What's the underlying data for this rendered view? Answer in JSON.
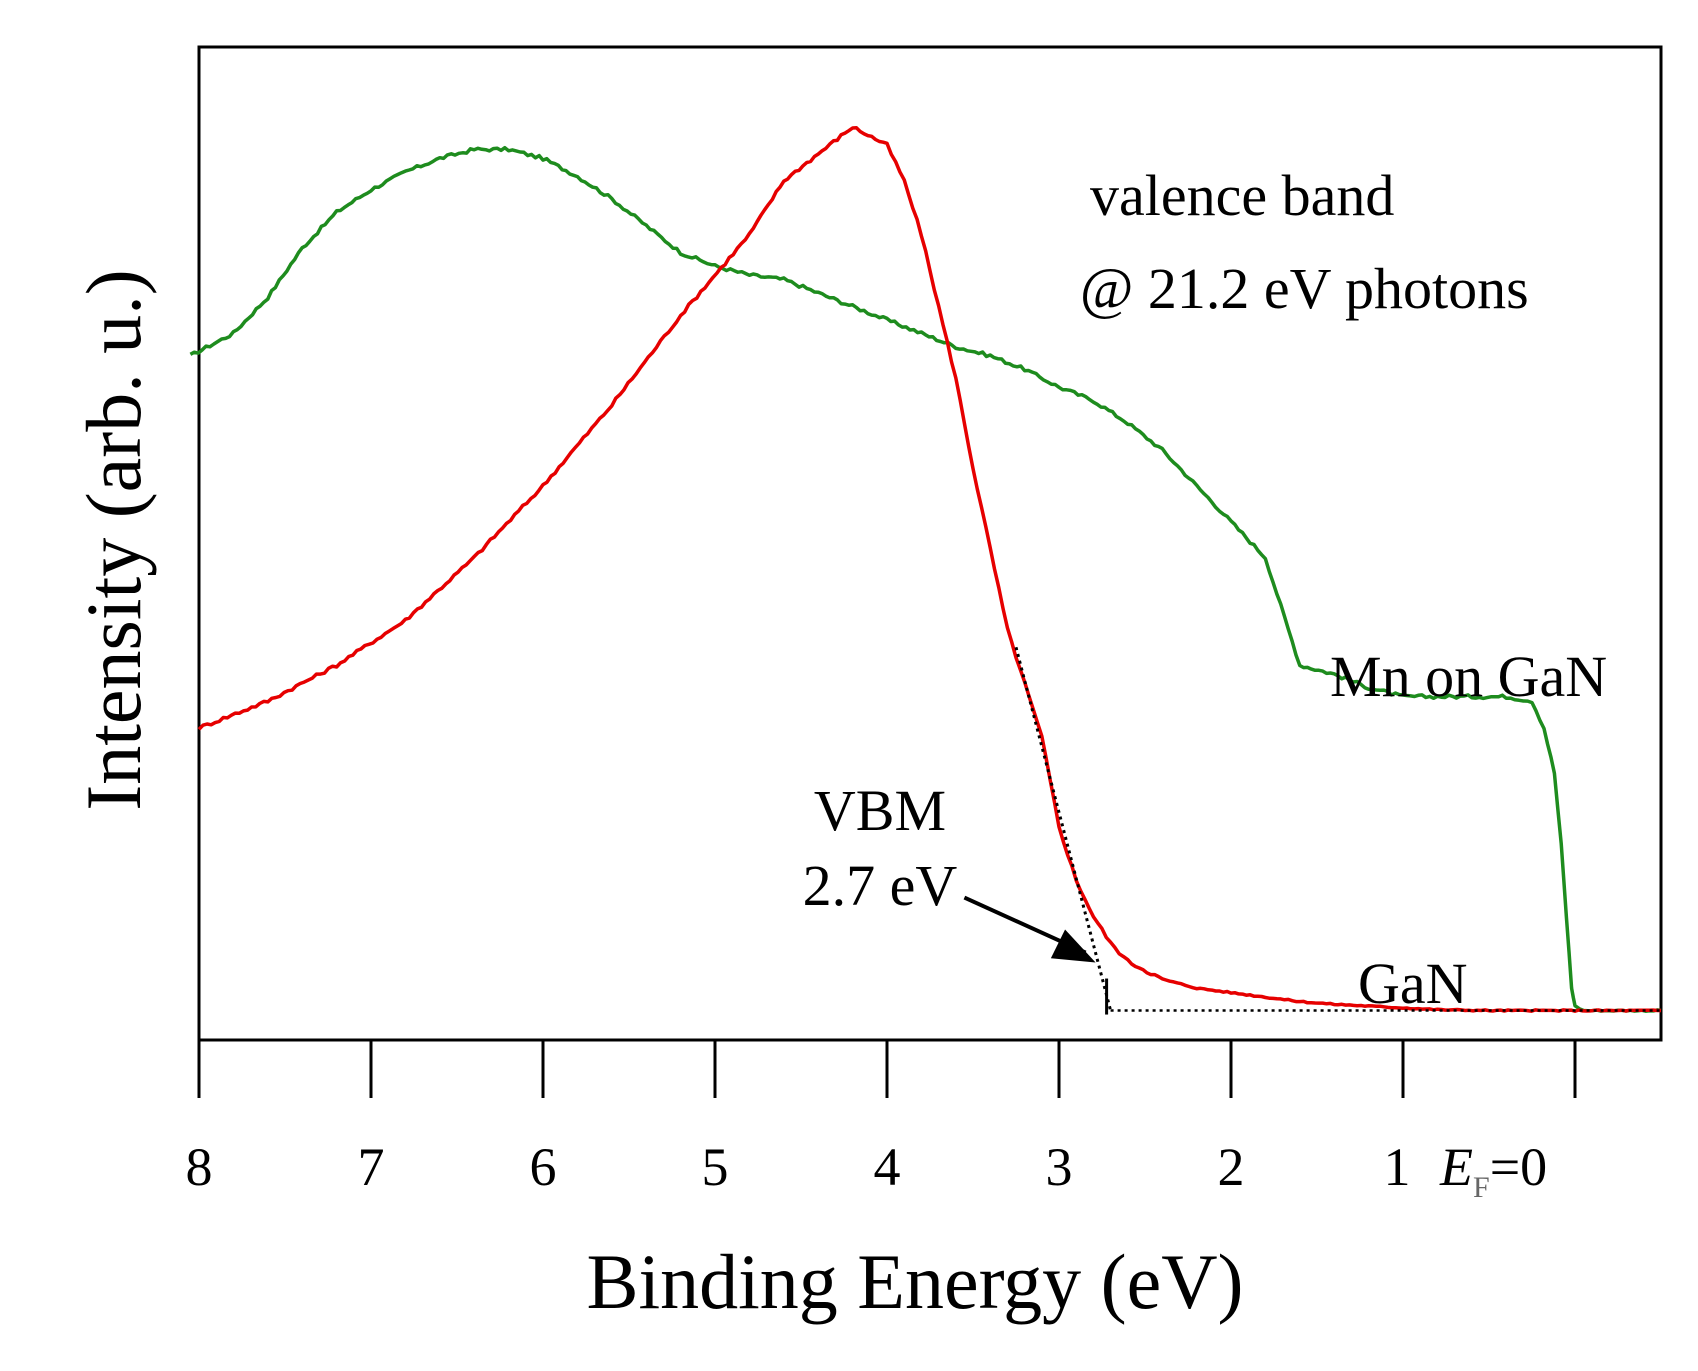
{
  "chart_data": {
    "type": "line",
    "title": "",
    "xlabel": "Binding Energy (eV)",
    "ylabel": "Intensity (arb. u.)",
    "xlim": [
      8.0,
      -0.5
    ],
    "ylim": [
      0,
      1.0
    ],
    "x_reversed": true,
    "grid": false,
    "xticks": [
      8,
      7,
      6,
      5,
      4,
      3,
      2,
      1,
      0
    ],
    "xtick_labels": [
      "8",
      "7",
      "6",
      "5",
      "4",
      "3",
      "2",
      "1",
      "0"
    ],
    "fermi_label": {
      "italic": "E",
      "subscript": "F",
      "suffix": "=0"
    },
    "annotations": {
      "line1": "valence band",
      "line2": "@ 21.2 eV photons",
      "vbm_label": "VBM",
      "vbm_value": "2.7 eV"
    },
    "vbm": {
      "value_ev": 2.7,
      "tangent_top_x": 3.25,
      "tangent_top_y": 0.42,
      "baseline_y": 0.015,
      "arrow_from_x": 3.55,
      "arrow_from_y": 0.17
    },
    "series": [
      {
        "name": "Mn on GaN",
        "label": "Mn on GaN",
        "color": "#1e8c1e",
        "x": [
          8.05,
          7.8,
          7.6,
          7.4,
          7.2,
          7.0,
          6.8,
          6.6,
          6.4,
          6.2,
          6.0,
          5.8,
          5.6,
          5.4,
          5.2,
          5.0,
          4.8,
          4.6,
          4.4,
          4.2,
          4.0,
          3.8,
          3.6,
          3.4,
          3.2,
          3.0,
          2.8,
          2.6,
          2.4,
          2.2,
          2.0,
          1.8,
          1.6,
          1.4,
          1.2,
          1.0,
          0.8,
          0.6,
          0.4,
          0.25,
          0.18,
          0.12,
          0.08,
          0.05,
          0.02,
          0.0,
          -0.05,
          -0.1,
          -0.2,
          -0.3,
          -0.5
        ],
        "y": [
          0.745,
          0.77,
          0.81,
          0.865,
          0.905,
          0.93,
          0.95,
          0.965,
          0.975,
          0.975,
          0.965,
          0.945,
          0.92,
          0.89,
          0.86,
          0.845,
          0.835,
          0.83,
          0.815,
          0.8,
          0.785,
          0.77,
          0.755,
          0.745,
          0.73,
          0.71,
          0.695,
          0.67,
          0.64,
          0.6,
          0.56,
          0.52,
          0.4,
          0.39,
          0.375,
          0.365,
          0.365,
          0.365,
          0.365,
          0.36,
          0.33,
          0.28,
          0.2,
          0.12,
          0.04,
          0.02,
          0.015,
          0.015,
          0.015,
          0.015,
          0.015
        ]
      },
      {
        "name": "GaN",
        "label": "GaN",
        "color": "#e60000",
        "x": [
          8.0,
          7.6,
          7.2,
          6.8,
          6.4,
          6.0,
          5.6,
          5.2,
          4.8,
          4.6,
          4.4,
          4.2,
          4.0,
          3.9,
          3.8,
          3.7,
          3.6,
          3.5,
          3.4,
          3.3,
          3.2,
          3.1,
          3.0,
          2.9,
          2.8,
          2.7,
          2.6,
          2.4,
          2.2,
          2.0,
          1.8,
          1.6,
          1.4,
          1.2,
          1.0,
          0.8,
          0.5,
          0.3,
          0.0,
          -0.5
        ],
        "y": [
          0.33,
          0.36,
          0.4,
          0.45,
          0.52,
          0.6,
          0.69,
          0.79,
          0.88,
          0.94,
          0.97,
          1.0,
          0.98,
          0.94,
          0.88,
          0.8,
          0.72,
          0.62,
          0.53,
          0.44,
          0.38,
          0.32,
          0.22,
          0.16,
          0.12,
          0.09,
          0.07,
          0.05,
          0.04,
          0.035,
          0.03,
          0.025,
          0.022,
          0.02,
          0.018,
          0.016,
          0.015,
          0.015,
          0.015,
          0.015
        ]
      }
    ]
  }
}
